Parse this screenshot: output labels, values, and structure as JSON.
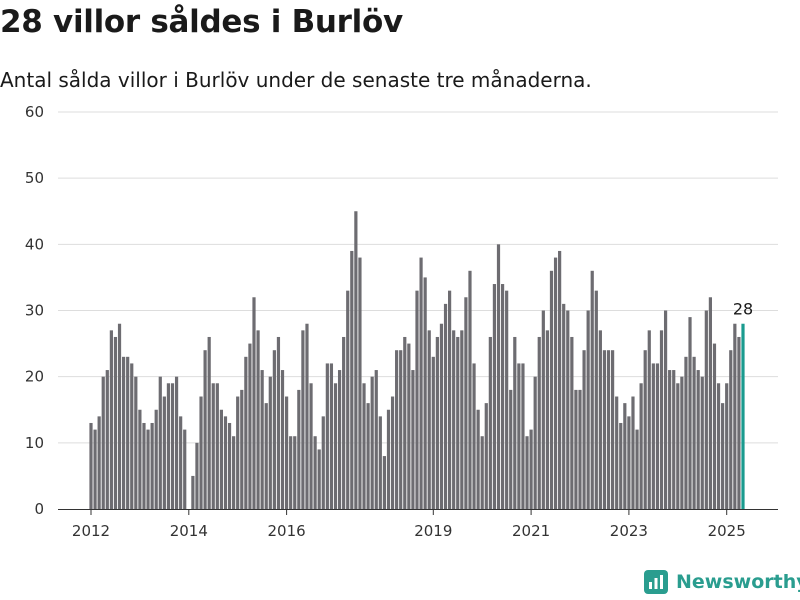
{
  "header": {
    "title": "28 villor såldes i Burlöv",
    "subtitle": "Antal sålda villor i Burlöv under de senaste tre månaderna."
  },
  "brand": {
    "name": "Newsworthy"
  },
  "colors": {
    "bar": "#6d6c71",
    "highlight": "#1a9b8f",
    "grid": "#dddddd",
    "axis": "#333333",
    "brand": "#2a9d8f"
  },
  "chart_data": {
    "type": "bar",
    "title": "28 villor såldes i Burlöv",
    "subtitle": "Antal sålda villor i Burlöv under de senaste tre månaderna.",
    "xlabel": "",
    "ylabel": "",
    "ylim": [
      0,
      60
    ],
    "yticks": [
      "0",
      "10",
      "20",
      "30",
      "40",
      "50",
      "60"
    ],
    "xticks": [
      "2012",
      "2014",
      "2016",
      "2019",
      "2021",
      "2023",
      "2025"
    ],
    "x_start": "2012-01",
    "x_end": "2025-06",
    "values": [
      13,
      12,
      14,
      20,
      21,
      27,
      26,
      28,
      23,
      23,
      22,
      20,
      15,
      13,
      12,
      13,
      15,
      20,
      17,
      19,
      19,
      20,
      14,
      12,
      0,
      5,
      10,
      17,
      24,
      26,
      19,
      19,
      15,
      14,
      13,
      11,
      17,
      18,
      23,
      25,
      32,
      27,
      21,
      16,
      20,
      24,
      26,
      21,
      17,
      11,
      11,
      18,
      27,
      28,
      19,
      11,
      9,
      14,
      22,
      22,
      19,
      21,
      26,
      33,
      39,
      45,
      38,
      19,
      16,
      20,
      21,
      14,
      8,
      15,
      17,
      24,
      24,
      26,
      25,
      21,
      33,
      38,
      35,
      27,
      23,
      26,
      28,
      31,
      33,
      27,
      26,
      27,
      32,
      36,
      22,
      15,
      11,
      16,
      26,
      34,
      40,
      34,
      33,
      18,
      26,
      22,
      22,
      11,
      12,
      20,
      26,
      30,
      27,
      36,
      38,
      39,
      31,
      30,
      26,
      18,
      18,
      24,
      30,
      36,
      33,
      27,
      24,
      24,
      24,
      17,
      13,
      16,
      14,
      17,
      12,
      19,
      24,
      27,
      22,
      22,
      27,
      30,
      21,
      21,
      19,
      20,
      23,
      29,
      23,
      21,
      20,
      30,
      32,
      25,
      19,
      16,
      19,
      24,
      28,
      26,
      28
    ],
    "highlight_index": 160,
    "annotation": "28",
    "grid": true,
    "legend": "none"
  }
}
